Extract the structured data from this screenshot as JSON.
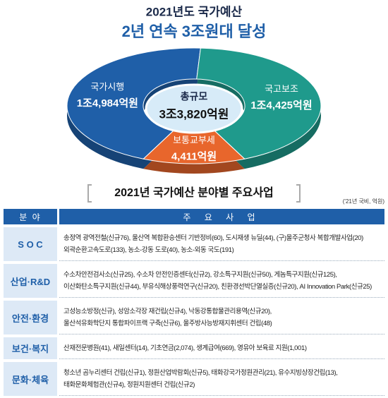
{
  "chart_data": {
    "type": "pie",
    "title": "2021년도 국가예산",
    "subtitle": "2년 연속 3조원대 달성",
    "categories": [
      "국가시행",
      "국고보조",
      "보통교부세"
    ],
    "values": [
      14984,
      14425,
      4411
    ],
    "value_labels": [
      "1조4,984억원",
      "1조4,425억원",
      "4,411억원"
    ],
    "colors": [
      "#1f5fa8",
      "#1f9a8c",
      "#e8662c"
    ],
    "center_label": "총규모",
    "center_value_label": "3조3,820억원"
  },
  "section": {
    "title": "2021년 국가예산 분야별 주요사업",
    "note": "('21년 국비, 억원)"
  },
  "table": {
    "header": [
      "분 야",
      "주 요 사 업"
    ],
    "rows": [
      {
        "field": "S O C",
        "items": [
          "송정역 광역전철(신규76), 울산역 복합환승센터 기반정비(60), 도시재생 뉴딜(44), (구)울주군청사 복합개발사업(20)",
          "외곽순환고속도로(133), 농소-강동 도로(40), 농소-외동 국도(191)"
        ]
      },
      {
        "field": "산업·R&D",
        "items": [
          "수소차안전검사소(신규25), 수소차 안전인증센터(신규2), 강소특구지원(신규50), 게놈특구지원(신규125),",
          "이산화탄소특구지원(신규44), 부유식해상풍력연구(신규20), 친환경선박단열실증(신규20), AI Innovation Park(신규25)"
        ]
      },
      {
        "field": "안전·환경",
        "items": [
          "고성능소방정(신규), 성암소각장 재건립(신규4), 낙동강통합물관리용역(신규20),",
          "울산석유화학단지 통합파이프랙 구축(신규6), 울주방사능방재지휘센터 건립(48)"
        ]
      },
      {
        "field": "보건·복지",
        "items": [
          "산재전문병원(41), 새일센터(14), 기초연금(2,074), 생계급여(669), 영유아 보육료 지원(1,001)"
        ]
      },
      {
        "field": "문화·체육",
        "items": [
          "청소년 곰누리센터 건립(신규1), 정원산업박람회(신규5), 태화강국가정원관리(21), 유수지빙상장건립(13),",
          "태화문화체험관(신규4), 정원지원센터 건립(신규2)"
        ]
      }
    ]
  }
}
